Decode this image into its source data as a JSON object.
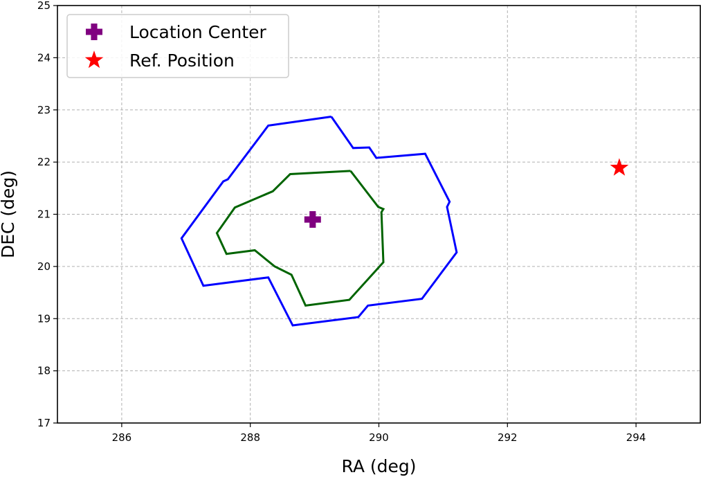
{
  "chart_data": {
    "type": "line",
    "xlabel": "RA (deg)",
    "ylabel": "DEC (deg)",
    "xlim": [
      285,
      295
    ],
    "ylim": [
      17,
      25
    ],
    "xticks": [
      286,
      288,
      290,
      292,
      294
    ],
    "xtick_labels": [
      "286",
      "288",
      "290",
      "292",
      "294"
    ],
    "yticks": [
      17,
      18,
      19,
      20,
      21,
      22,
      23,
      24,
      25
    ],
    "ytick_labels": [
      "17",
      "18",
      "19",
      "20",
      "21",
      "22",
      "23",
      "24",
      "25"
    ],
    "grid": true,
    "legend_position": "upper-left",
    "legend": [
      {
        "label": "Location Center",
        "marker": "plus",
        "color": "#800080"
      },
      {
        "label": "Ref. Position",
        "marker": "star",
        "color": "#ff0000"
      }
    ],
    "contours": [
      {
        "color": "#0000ff",
        "points": [
          [
            289.26,
            22.87
          ],
          [
            288.28,
            22.7
          ],
          [
            287.65,
            21.67
          ],
          [
            287.58,
            21.63
          ],
          [
            286.93,
            20.54
          ],
          [
            287.27,
            19.63
          ],
          [
            288.28,
            19.79
          ],
          [
            288.66,
            18.87
          ],
          [
            289.68,
            19.03
          ],
          [
            289.83,
            19.25
          ],
          [
            290.67,
            19.38
          ],
          [
            291.21,
            20.27
          ],
          [
            291.06,
            21.14
          ],
          [
            291.1,
            21.24
          ],
          [
            290.72,
            22.16
          ],
          [
            289.96,
            22.08
          ],
          [
            289.85,
            22.28
          ],
          [
            289.6,
            22.27
          ],
          [
            289.26,
            22.87
          ]
        ]
      },
      {
        "color": "#006400",
        "points": [
          [
            289.56,
            21.83
          ],
          [
            288.62,
            21.77
          ],
          [
            288.35,
            21.44
          ],
          [
            287.76,
            21.13
          ],
          [
            287.48,
            20.64
          ],
          [
            287.63,
            20.24
          ],
          [
            288.07,
            20.31
          ],
          [
            288.38,
            20.0
          ],
          [
            288.64,
            19.84
          ],
          [
            288.86,
            19.25
          ],
          [
            289.54,
            19.36
          ],
          [
            290.07,
            20.08
          ],
          [
            290.04,
            21.04
          ],
          [
            290.07,
            21.1
          ],
          [
            289.99,
            21.14
          ],
          [
            289.56,
            21.83
          ]
        ]
      }
    ],
    "markers": [
      {
        "name": "Location Center",
        "shape": "plus",
        "color": "#800080",
        "x": 288.97,
        "y": 20.9
      },
      {
        "name": "Ref. Position",
        "shape": "star",
        "color": "#ff0000",
        "x": 293.74,
        "y": 21.89
      }
    ]
  }
}
